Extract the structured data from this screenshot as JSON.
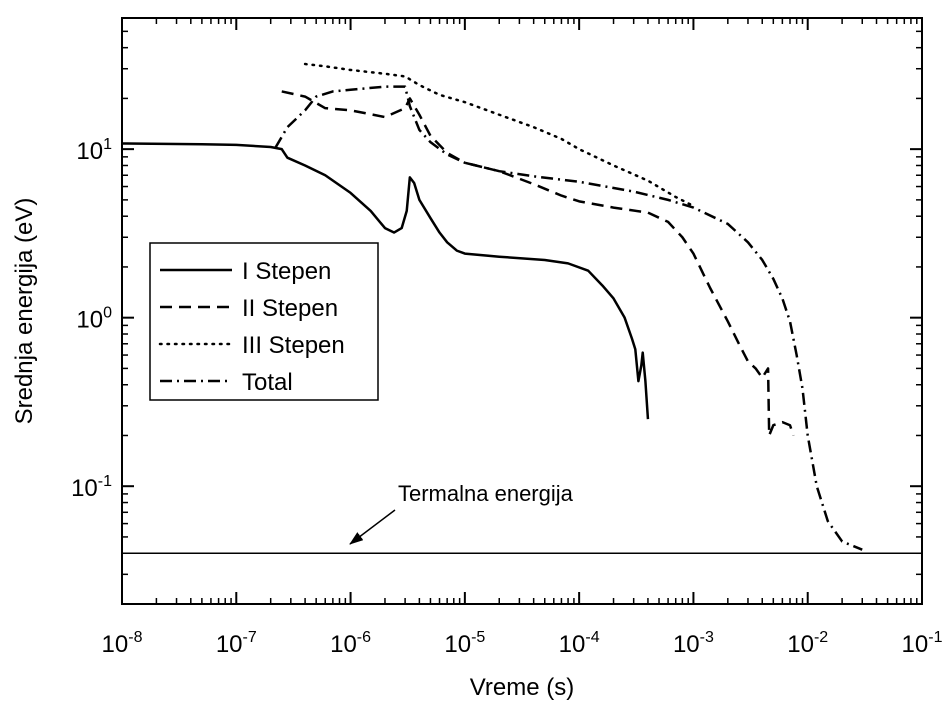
{
  "chart_data": {
    "type": "line",
    "xlabel": "Vreme (s)",
    "ylabel": "Srednja energija (eV)",
    "x_scale": "log",
    "y_scale": "log",
    "xlim": [
      1e-08,
      0.1
    ],
    "ylim": [
      0.02,
      60
    ],
    "x_ticks": [
      {
        "value": 1e-08,
        "base": "10",
        "exp": "-8"
      },
      {
        "value": 1e-07,
        "base": "10",
        "exp": "-7"
      },
      {
        "value": 1e-06,
        "base": "10",
        "exp": "-6"
      },
      {
        "value": 1e-05,
        "base": "10",
        "exp": "-5"
      },
      {
        "value": 0.0001,
        "base": "10",
        "exp": "-4"
      },
      {
        "value": 0.001,
        "base": "10",
        "exp": "-3"
      },
      {
        "value": 0.01,
        "base": "10",
        "exp": "-2"
      },
      {
        "value": 0.1,
        "base": "10",
        "exp": "-1"
      }
    ],
    "y_ticks": [
      {
        "value": 0.1,
        "base": "10",
        "exp": "-1"
      },
      {
        "value": 1,
        "base": "10",
        "exp": "0"
      },
      {
        "value": 10,
        "base": "10",
        "exp": "1"
      }
    ],
    "grid": false,
    "legend_position": "left",
    "series": [
      {
        "name": "I Stepen",
        "dash": "solid",
        "points": [
          [
            1e-08,
            10.8
          ],
          [
            5e-08,
            10.7
          ],
          [
            1e-07,
            10.6
          ],
          [
            2e-07,
            10.3
          ],
          [
            2.5e-07,
            10.0
          ],
          [
            2.8e-07,
            8.9
          ],
          [
            4e-07,
            8.0
          ],
          [
            6e-07,
            7.0
          ],
          [
            1e-06,
            5.5
          ],
          [
            1.5e-06,
            4.3
          ],
          [
            2e-06,
            3.4
          ],
          [
            2.4e-06,
            3.2
          ],
          [
            2.8e-06,
            3.4
          ],
          [
            3.1e-06,
            4.3
          ],
          [
            3.3e-06,
            6.8
          ],
          [
            3.6e-06,
            6.3
          ],
          [
            4e-06,
            5.0
          ],
          [
            5e-06,
            3.9
          ],
          [
            6e-06,
            3.2
          ],
          [
            7e-06,
            2.8
          ],
          [
            8.5e-06,
            2.5
          ],
          [
            1e-05,
            2.4
          ],
          [
            2e-05,
            2.3
          ],
          [
            5e-05,
            2.2
          ],
          [
            8e-05,
            2.1
          ],
          [
            0.00012,
            1.9
          ],
          [
            0.00016,
            1.55
          ],
          [
            0.0002,
            1.3
          ],
          [
            0.00025,
            1.0
          ],
          [
            0.00029,
            0.75
          ],
          [
            0.00031,
            0.65
          ],
          [
            0.00033,
            0.42
          ],
          [
            0.00035,
            0.52
          ],
          [
            0.00036,
            0.62
          ],
          [
            0.00038,
            0.42
          ],
          [
            0.0004,
            0.25
          ]
        ]
      },
      {
        "name": "II Stepen",
        "dash": "dashed",
        "points": [
          [
            2.5e-07,
            22
          ],
          [
            4e-07,
            20.5
          ],
          [
            6e-07,
            17.5
          ],
          [
            1e-06,
            17
          ],
          [
            2e-06,
            15.5
          ],
          [
            3e-06,
            17.5
          ],
          [
            3.3e-06,
            20
          ],
          [
            4e-06,
            16
          ],
          [
            5e-06,
            12
          ],
          [
            7e-06,
            9.5
          ],
          [
            1e-05,
            8.3
          ],
          [
            2e-05,
            7.4
          ],
          [
            4e-05,
            6.2
          ],
          [
            7e-05,
            5.3
          ],
          [
            0.0001,
            4.9
          ],
          [
            0.0002,
            4.5
          ],
          [
            0.0004,
            4.2
          ],
          [
            0.0006,
            3.7
          ],
          [
            0.0008,
            3.0
          ],
          [
            0.001,
            2.4
          ],
          [
            0.0014,
            1.5
          ],
          [
            0.002,
            0.95
          ],
          [
            0.0025,
            0.7
          ],
          [
            0.003,
            0.55
          ],
          [
            0.0035,
            0.5
          ],
          [
            0.004,
            0.44
          ],
          [
            0.0045,
            0.5
          ],
          [
            0.0046,
            0.2
          ],
          [
            0.005,
            0.23
          ],
          [
            0.006,
            0.24
          ],
          [
            0.007,
            0.23
          ],
          [
            0.0075,
            0.2
          ]
        ]
      },
      {
        "name": "III Stepen",
        "dash": "dotted",
        "points": [
          [
            4e-07,
            32
          ],
          [
            6e-07,
            31
          ],
          [
            1e-06,
            29.5
          ],
          [
            2e-06,
            28
          ],
          [
            3e-06,
            27
          ],
          [
            4e-06,
            24
          ],
          [
            6e-06,
            21
          ],
          [
            1e-05,
            19
          ],
          [
            2e-05,
            16
          ],
          [
            4e-05,
            13.5
          ],
          [
            7e-05,
            11.5
          ],
          [
            0.0001,
            10
          ],
          [
            0.0002,
            8
          ],
          [
            0.0004,
            6.5
          ],
          [
            0.0007,
            5.2
          ],
          [
            0.001,
            4.6
          ]
        ]
      },
      {
        "name": "Total",
        "dash": "dashdot",
        "points": [
          [
            2.2e-07,
            10.2
          ],
          [
            2.8e-07,
            13.5
          ],
          [
            4e-07,
            17
          ],
          [
            5e-07,
            20.5
          ],
          [
            7e-07,
            22
          ],
          [
            1e-06,
            22.5
          ],
          [
            2e-06,
            23.5
          ],
          [
            3e-06,
            23.5
          ],
          [
            3.3e-06,
            18
          ],
          [
            4e-06,
            13
          ],
          [
            5e-06,
            11
          ],
          [
            7e-06,
            9.3
          ],
          [
            1e-05,
            8.3
          ],
          [
            2e-05,
            7.4
          ],
          [
            4e-05,
            6.9
          ],
          [
            0.0001,
            6.4
          ],
          [
            0.0003,
            5.6
          ],
          [
            0.0006,
            5.0
          ],
          [
            0.001,
            4.5
          ],
          [
            0.002,
            3.6
          ],
          [
            0.003,
            2.8
          ],
          [
            0.004,
            2.2
          ],
          [
            0.005,
            1.7
          ],
          [
            0.006,
            1.3
          ],
          [
            0.007,
            0.95
          ],
          [
            0.008,
            0.6
          ],
          [
            0.009,
            0.38
          ],
          [
            0.01,
            0.2
          ],
          [
            0.012,
            0.1
          ],
          [
            0.015,
            0.062
          ],
          [
            0.02,
            0.047
          ],
          [
            0.03,
            0.042
          ]
        ]
      },
      {
        "name": "",
        "dash": "solid-thin",
        "points": [
          [
            1e-08,
            0.04
          ],
          [
            0.1,
            0.04
          ]
        ]
      }
    ],
    "annotations": [
      {
        "text": "Termalna energija",
        "arrow_to": [
          1e-06,
          0.04
        ]
      }
    ]
  }
}
